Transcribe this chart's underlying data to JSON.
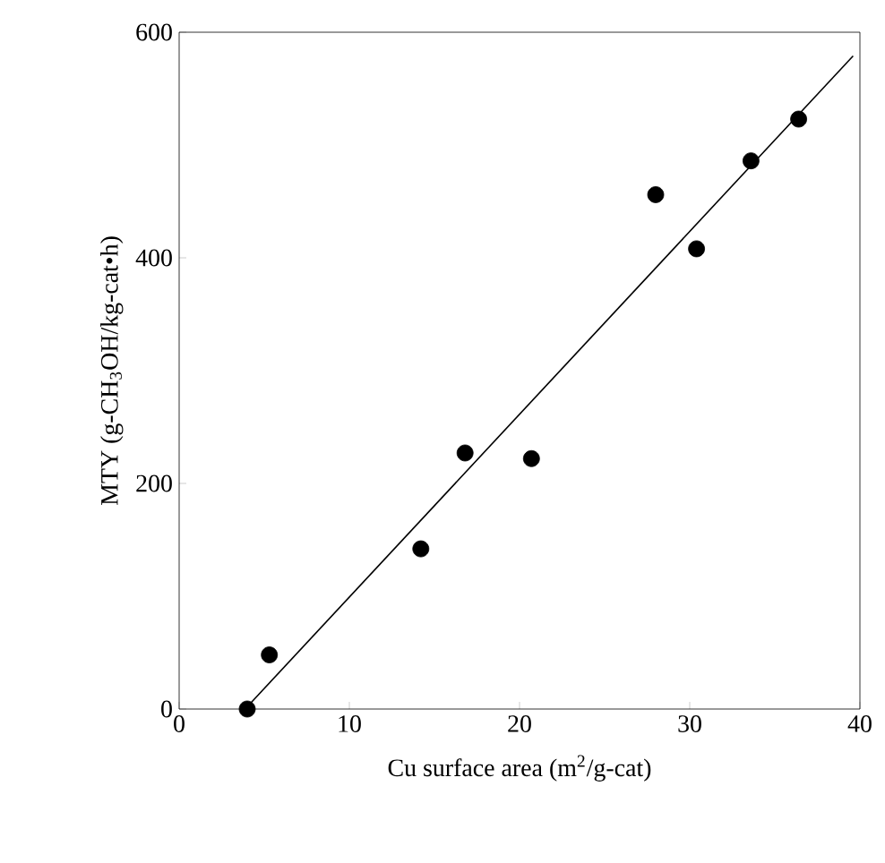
{
  "chart_data": {
    "type": "scatter",
    "xlabel": "Cu surface area (m$^{2}$/g-cat)",
    "ylabel": "MTY (g-CH$_{3}$OH/kg-cat•h)",
    "xlim": [
      0,
      40
    ],
    "ylim": [
      0,
      600
    ],
    "xticks": [
      0,
      10,
      20,
      30,
      40
    ],
    "yticks": [
      0,
      200,
      400,
      600
    ],
    "grid": false,
    "series": [
      {
        "type": "scatter",
        "marker": "circle",
        "color": "#000000",
        "x": [
          4.0,
          5.3,
          14.2,
          16.8,
          20.7,
          28.0,
          30.4,
          33.6,
          36.4
        ],
        "values": [
          0,
          48,
          142,
          227,
          222,
          456,
          408,
          486,
          523
        ]
      },
      {
        "type": "line",
        "marker": "none",
        "color": "#000000",
        "x": [
          4.0,
          39.6
        ],
        "values": [
          2,
          579
        ]
      }
    ]
  }
}
